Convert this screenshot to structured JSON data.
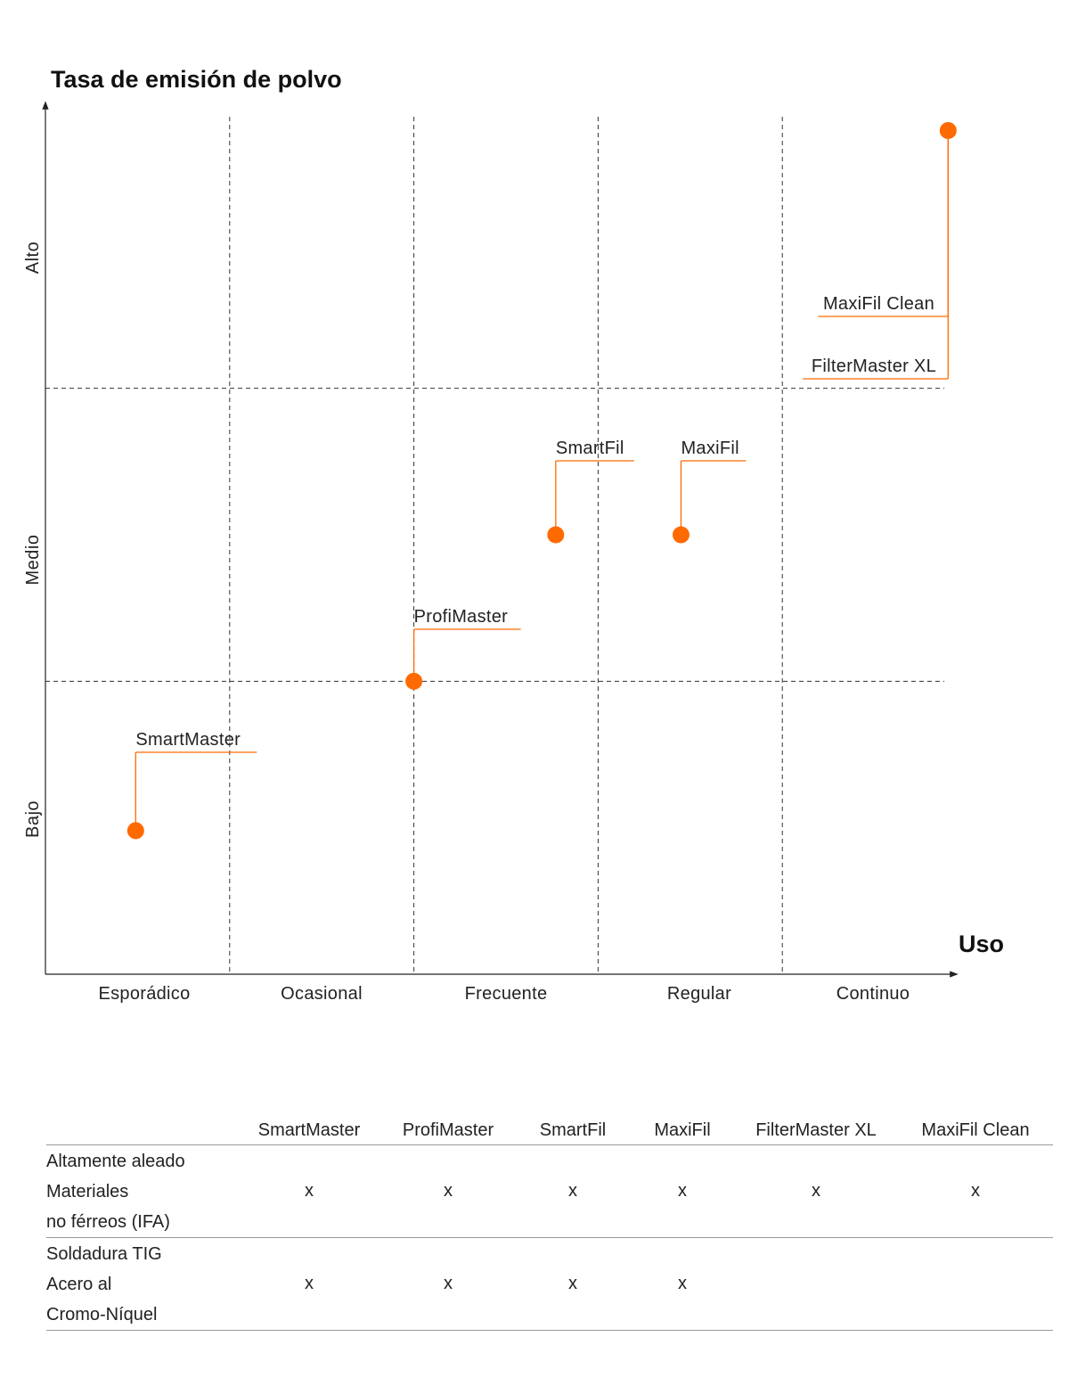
{
  "chart_data": {
    "type": "scatter",
    "title": "Tasa de emisión de polvo",
    "xlabel": "Uso",
    "ylabel": "",
    "x_categories": [
      "Esporádico",
      "Ocasional",
      "Frecuente",
      "Regular",
      "Continuo"
    ],
    "y_categories": [
      "Bajo",
      "Medio",
      "Alto"
    ],
    "xlim": [
      0,
      5
    ],
    "ylim": [
      0,
      3
    ],
    "grid": true,
    "legend": "none",
    "point_color": "#ff6a00",
    "points": [
      {
        "name": "SmartMaster",
        "x": 0.49,
        "y": 0.49
      },
      {
        "name": "ProfiMaster",
        "x": 2.0,
        "y": 1.0
      },
      {
        "name": "SmartFil",
        "x": 2.77,
        "y": 1.5
      },
      {
        "name": "MaxiFil",
        "x": 3.45,
        "y": 1.5
      },
      {
        "name": "MaxiFil Clean",
        "x": 4.9,
        "y": 2.88
      },
      {
        "name": "FilterMaster XL",
        "x": 4.9,
        "y": 2.88
      }
    ]
  },
  "matrix": {
    "columns": [
      "SmartMaster",
      "ProfiMaster",
      "SmartFil",
      "MaxiFil",
      "FilterMaster XL",
      "MaxiFil Clean"
    ],
    "rows": [
      {
        "label": [
          "Altamente aleado",
          "Materiales",
          "no férreos (IFA)"
        ],
        "cells": [
          "x",
          "x",
          "x",
          "x",
          "x",
          "x"
        ]
      },
      {
        "label": [
          "Soldadura TIG",
          "Acero al",
          "Cromo-Níquel"
        ],
        "cells": [
          "x",
          "x",
          "x",
          "x",
          "",
          ""
        ]
      }
    ]
  }
}
